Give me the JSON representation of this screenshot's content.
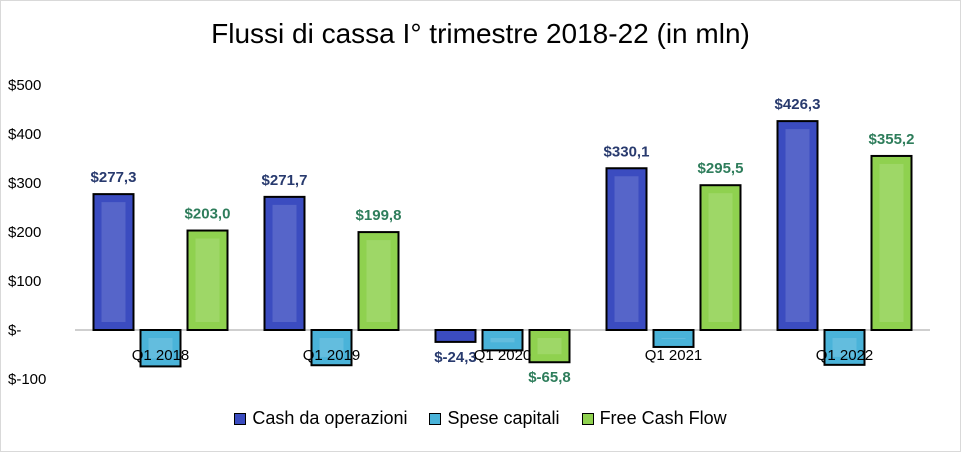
{
  "chart_data": {
    "type": "bar",
    "title": "Flussi di cassa I° trimestre 2018-22  (in mln)",
    "categories": [
      "Q1 2018",
      "Q1 2019",
      "Q1 2020",
      "Q1 2021",
      "Q1 2022"
    ],
    "series": [
      {
        "name": "Cash da operazioni",
        "values": [
          277.3,
          271.7,
          -24.3,
          330.1,
          426.3
        ],
        "labels": [
          "$277,3",
          "$271,7",
          "$-24,3",
          "$330,1",
          "$426,3"
        ],
        "color": "#3b4cc0",
        "label_color": "#283a6e"
      },
      {
        "name": "Spese capitali",
        "values": [
          -74.3,
          -71.9,
          -41.5,
          -34.6,
          -71.1
        ],
        "labels": [
          null,
          null,
          null,
          null,
          null
        ],
        "color": "#4ab3d9",
        "label_color": "#1f4e79"
      },
      {
        "name": "Free Cash Flow",
        "values": [
          203.0,
          199.8,
          -65.8,
          295.5,
          355.2
        ],
        "labels": [
          "$203,0",
          "$199,8",
          "$-65,8",
          "$295,5",
          "$355,2"
        ],
        "color": "#8fd14f",
        "label_color": "#2e7d5b"
      }
    ],
    "ylim": [
      -100,
      500
    ],
    "yticks": [
      -100,
      0,
      100,
      200,
      300,
      400,
      500
    ],
    "ytick_labels": [
      "$-100",
      "$-",
      "$100",
      "$200",
      "$300",
      "$400",
      "$500"
    ],
    "xlabel": "",
    "ylabel": "",
    "grid": false,
    "legend_position": "bottom"
  }
}
